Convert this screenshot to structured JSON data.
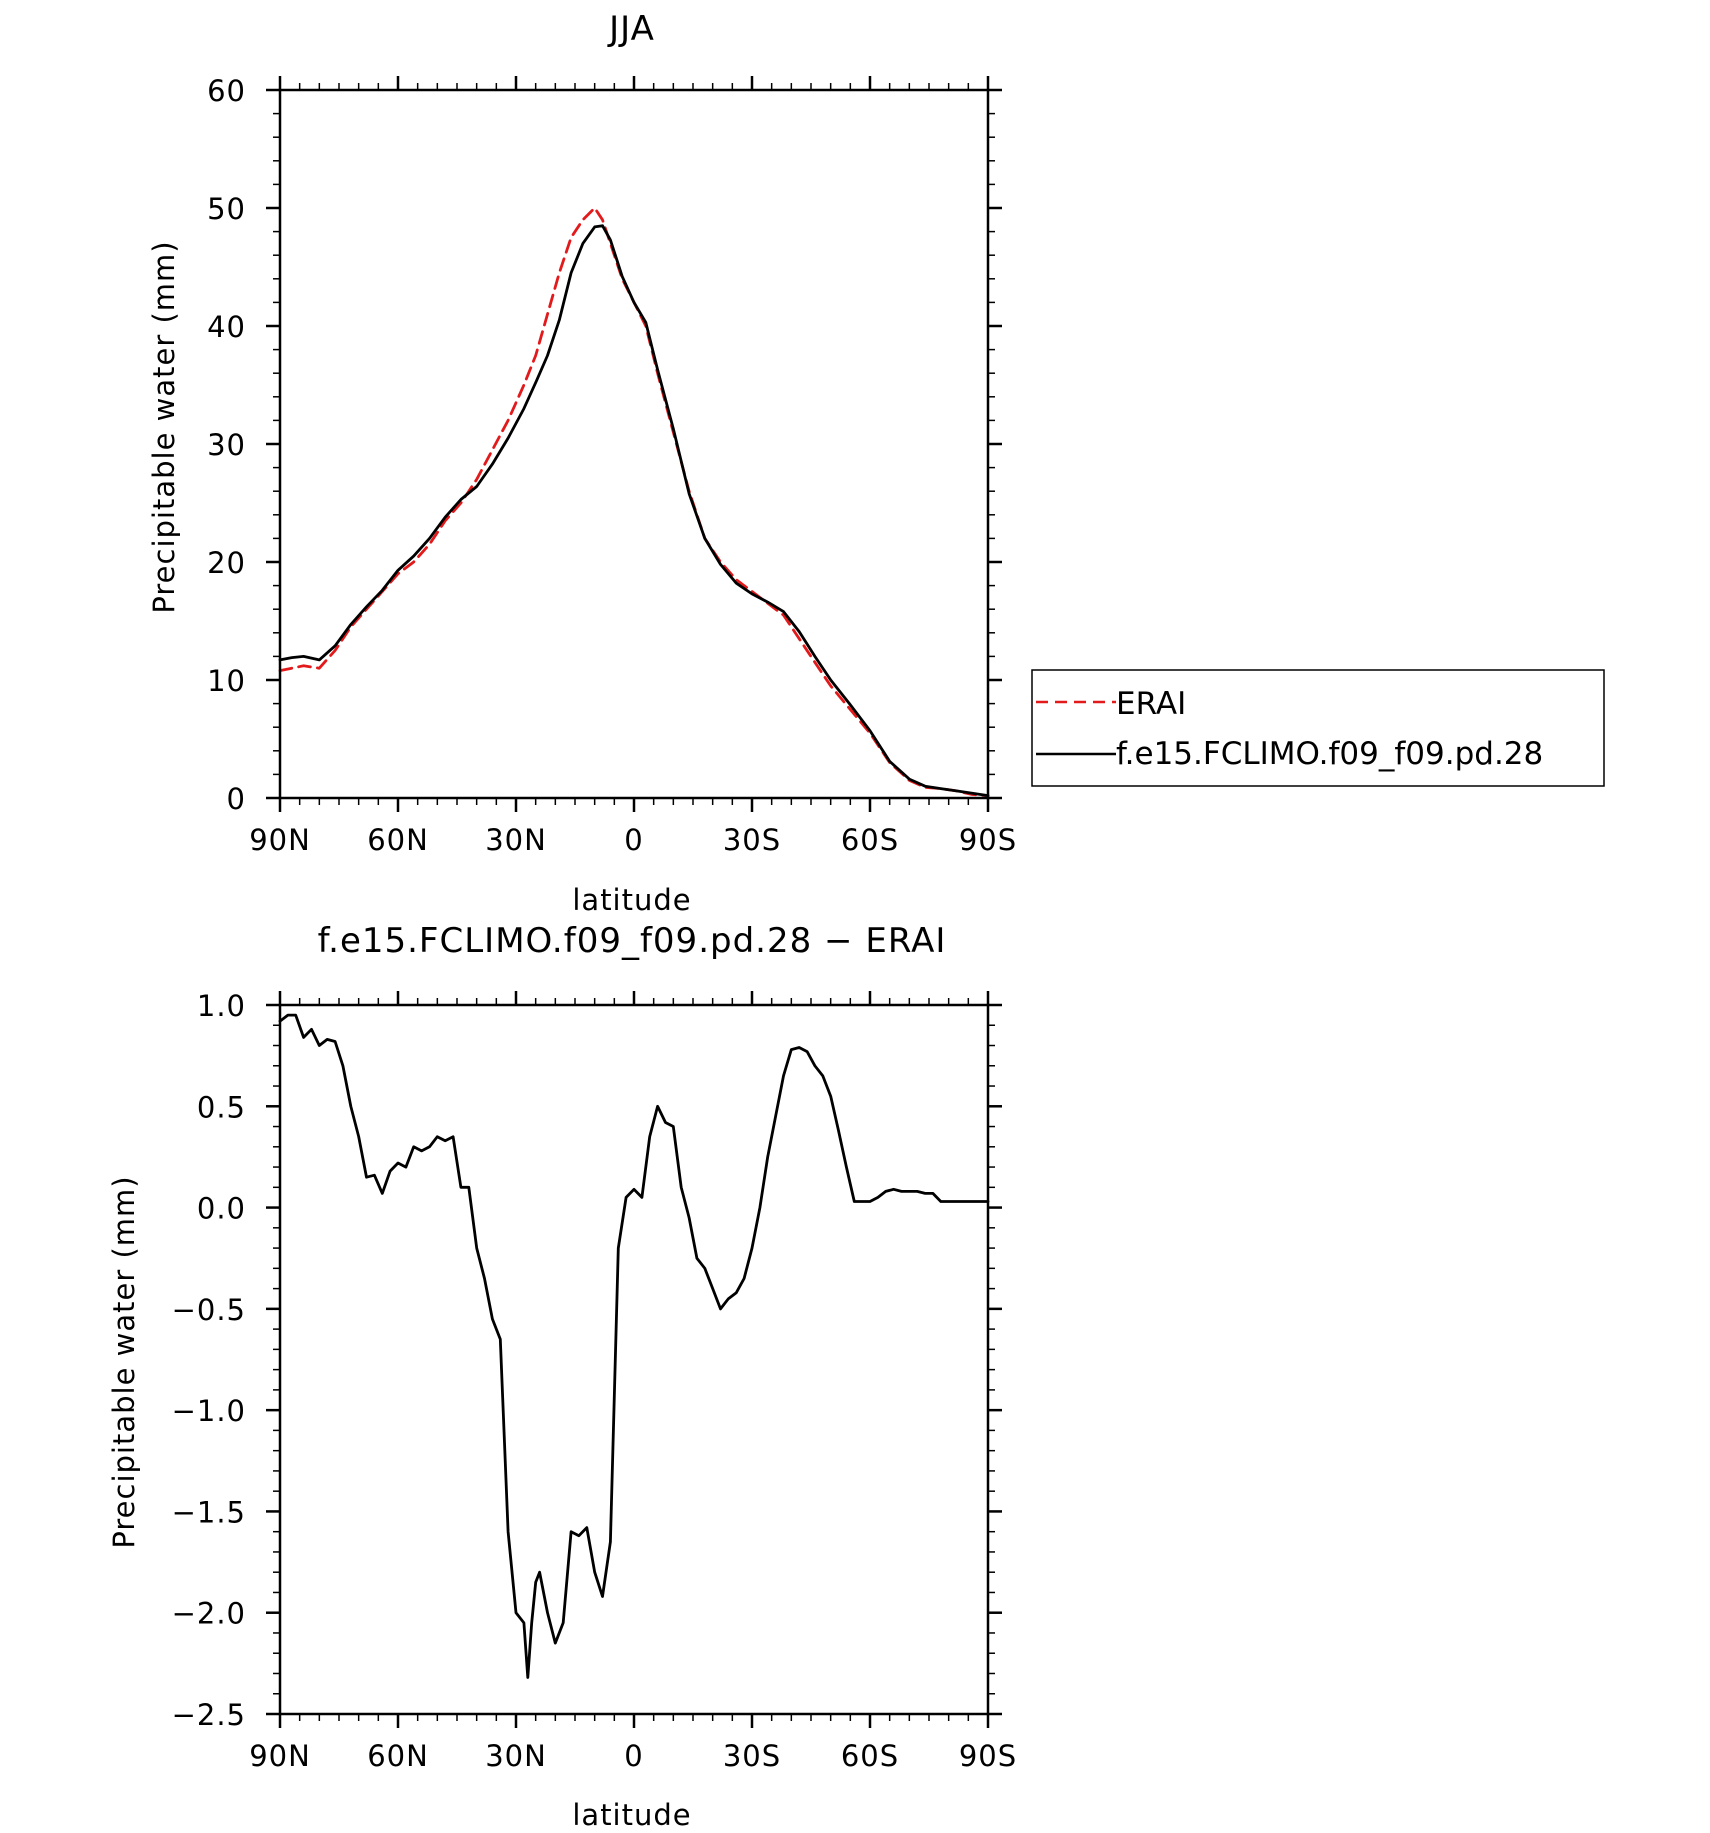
{
  "chart_data": [
    {
      "type": "line",
      "title": "JJA",
      "xlabel": "latitude",
      "ylabel": "Precipitable water (mm)",
      "xlim": [
        90,
        -90
      ],
      "ylim": [
        0,
        60
      ],
      "x_tick_values": [
        90,
        60,
        30,
        0,
        -30,
        -60,
        -90
      ],
      "x_tick_labels": [
        "90N",
        "60N",
        "30N",
        "0",
        "30S",
        "60S",
        "90S"
      ],
      "y_tick_values": [
        0,
        10,
        20,
        30,
        40,
        50,
        60
      ],
      "y_tick_labels": [
        "0",
        "10",
        "20",
        "30",
        "40",
        "50",
        "60"
      ],
      "legend_position": "right",
      "series": [
        {
          "name": "ERAI",
          "color": "#e31a1c",
          "dash": "dashed",
          "x": [
            90,
            87,
            84,
            80,
            76,
            72,
            68,
            64,
            60,
            56,
            52,
            48,
            44,
            40,
            36,
            32,
            28,
            25,
            22,
            19,
            16,
            13,
            10,
            8,
            6,
            3,
            0,
            -3,
            -6,
            -10,
            -14,
            -18,
            -22,
            -26,
            -30,
            -34,
            -38,
            -42,
            -46,
            -50,
            -55,
            -60,
            -65,
            -70,
            -74,
            -78,
            -82,
            -86,
            -90
          ],
          "y": [
            10.8,
            11.0,
            11.2,
            11.0,
            12.5,
            14.5,
            16.0,
            17.5,
            19.0,
            20.0,
            21.5,
            23.5,
            25.0,
            27.0,
            29.5,
            32.0,
            35.0,
            37.5,
            41.0,
            44.5,
            47.5,
            49.0,
            50.0,
            49.0,
            47.0,
            44.0,
            42.0,
            40.0,
            36.0,
            31.0,
            26.0,
            22.0,
            20.0,
            18.5,
            17.5,
            16.5,
            15.5,
            13.5,
            11.5,
            9.5,
            7.5,
            5.5,
            3.0,
            1.5,
            0.9,
            0.8,
            0.6,
            0.3,
            0.2
          ]
        },
        {
          "name": "f.e15.FCLIMO.f09_f09.pd.28",
          "color": "#000000",
          "dash": "solid",
          "x": [
            90,
            87,
            84,
            80,
            76,
            72,
            68,
            64,
            60,
            56,
            52,
            48,
            44,
            40,
            36,
            32,
            28,
            25,
            22,
            19,
            16,
            13,
            10,
            8,
            6,
            3,
            0,
            -3,
            -6,
            -10,
            -14,
            -18,
            -22,
            -26,
            -30,
            -34,
            -38,
            -42,
            -46,
            -50,
            -55,
            -60,
            -65,
            -70,
            -74,
            -78,
            -82,
            -86,
            -90
          ],
          "y": [
            11.7,
            11.9,
            12.0,
            11.7,
            12.9,
            14.7,
            16.2,
            17.6,
            19.3,
            20.5,
            22.0,
            23.8,
            25.3,
            26.4,
            28.3,
            30.5,
            33.0,
            35.2,
            37.5,
            40.5,
            44.5,
            47.0,
            48.4,
            48.5,
            47.3,
            44.2,
            42.0,
            40.3,
            36.3,
            31.3,
            25.8,
            22.0,
            19.8,
            18.2,
            17.3,
            16.6,
            15.8,
            14.1,
            12.0,
            10.0,
            7.9,
            5.7,
            3.1,
            1.6,
            1.0,
            0.8,
            0.6,
            0.4,
            0.2
          ]
        }
      ]
    },
    {
      "type": "line",
      "title": "f.e15.FCLIMO.f09_f09.pd.28 − ERAI",
      "xlabel": "latitude",
      "ylabel": "Precipitable water (mm)",
      "xlim": [
        90,
        -90
      ],
      "ylim": [
        -2.5,
        1.0
      ],
      "x_tick_values": [
        90,
        60,
        30,
        0,
        -30,
        -60,
        -90
      ],
      "x_tick_labels": [
        "90N",
        "60N",
        "30N",
        "0",
        "30S",
        "60S",
        "90S"
      ],
      "y_tick_values": [
        1.0,
        0.5,
        0.0,
        -0.5,
        -1.0,
        -1.5,
        -2.0,
        -2.5
      ],
      "y_tick_labels": [
        "1.0",
        "0.5",
        "0.0",
        "−0.5",
        "−1.0",
        "−1.5",
        "−2.0",
        "−2.5"
      ],
      "series": [
        {
          "color": "#000000",
          "dash": "solid",
          "x": [
            90,
            88,
            86,
            84,
            82,
            80,
            78,
            76,
            74,
            72,
            70,
            68,
            66,
            64,
            62,
            60,
            58,
            56,
            54,
            52,
            50,
            48,
            46,
            44,
            42,
            40,
            38,
            36,
            34,
            32,
            30,
            28,
            27,
            26,
            25,
            24,
            22,
            20,
            18,
            16,
            14,
            12,
            10,
            8,
            6,
            4,
            2,
            0,
            -2,
            -4,
            -6,
            -8,
            -10,
            -12,
            -14,
            -16,
            -18,
            -20,
            -22,
            -24,
            -26,
            -28,
            -30,
            -32,
            -34,
            -36,
            -38,
            -40,
            -42,
            -44,
            -46,
            -48,
            -50,
            -52,
            -54,
            -56,
            -58,
            -60,
            -62,
            -64,
            -66,
            -68,
            -70,
            -72,
            -74,
            -76,
            -78,
            -80,
            -82,
            -84,
            -86,
            -88,
            -90
          ],
          "y": [
            0.92,
            0.95,
            0.95,
            0.84,
            0.88,
            0.8,
            0.83,
            0.82,
            0.7,
            0.5,
            0.35,
            0.15,
            0.16,
            0.07,
            0.18,
            0.22,
            0.2,
            0.3,
            0.28,
            0.3,
            0.35,
            0.33,
            0.35,
            0.1,
            0.1,
            -0.2,
            -0.35,
            -0.55,
            -0.65,
            -1.6,
            -2.0,
            -2.05,
            -2.32,
            -2.05,
            -1.85,
            -1.8,
            -2.0,
            -2.15,
            -2.05,
            -1.6,
            -1.62,
            -1.58,
            -1.8,
            -1.92,
            -1.65,
            -0.2,
            0.05,
            0.09,
            0.05,
            0.35,
            0.5,
            0.42,
            0.4,
            0.1,
            -0.05,
            -0.25,
            -0.3,
            -0.4,
            -0.5,
            -0.45,
            -0.42,
            -0.35,
            -0.2,
            0.0,
            0.25,
            0.45,
            0.65,
            0.78,
            0.79,
            0.77,
            0.7,
            0.65,
            0.55,
            0.38,
            0.2,
            0.03,
            0.03,
            0.03,
            0.05,
            0.08,
            0.09,
            0.08,
            0.08,
            0.08,
            0.07,
            0.07,
            0.03,
            0.03,
            0.03,
            0.03,
            0.03,
            0.03,
            0.03
          ]
        }
      ]
    }
  ]
}
